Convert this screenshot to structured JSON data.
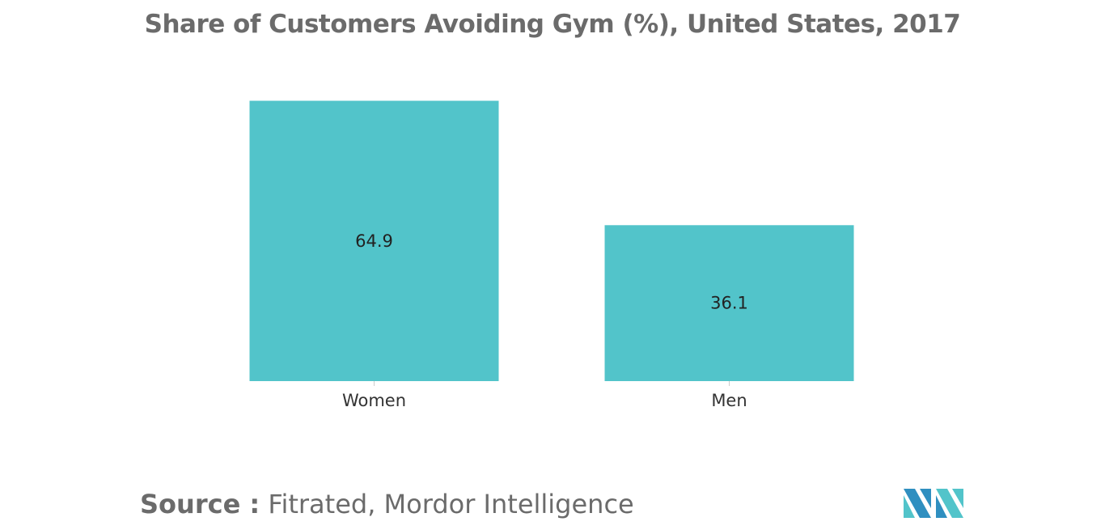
{
  "chart_data": {
    "type": "bar",
    "title": "Share of Customers Avoiding Gym (%), United States, 2017",
    "categories": [
      "Women",
      "Men"
    ],
    "values": [
      64.9,
      36.1
    ],
    "value_labels": [
      "64.9",
      "36.1"
    ],
    "ylim": [
      0,
      65
    ],
    "grid": false,
    "legend": "none",
    "bar_color": "#52c4ca"
  },
  "source": {
    "prefix": "Source :",
    "text": "Fitrated, Mordor Intelligence"
  },
  "logo": {
    "icon": "mordor-intelligence-logo-icon",
    "colors": [
      "#2f8fc0",
      "#52c4ca"
    ]
  }
}
